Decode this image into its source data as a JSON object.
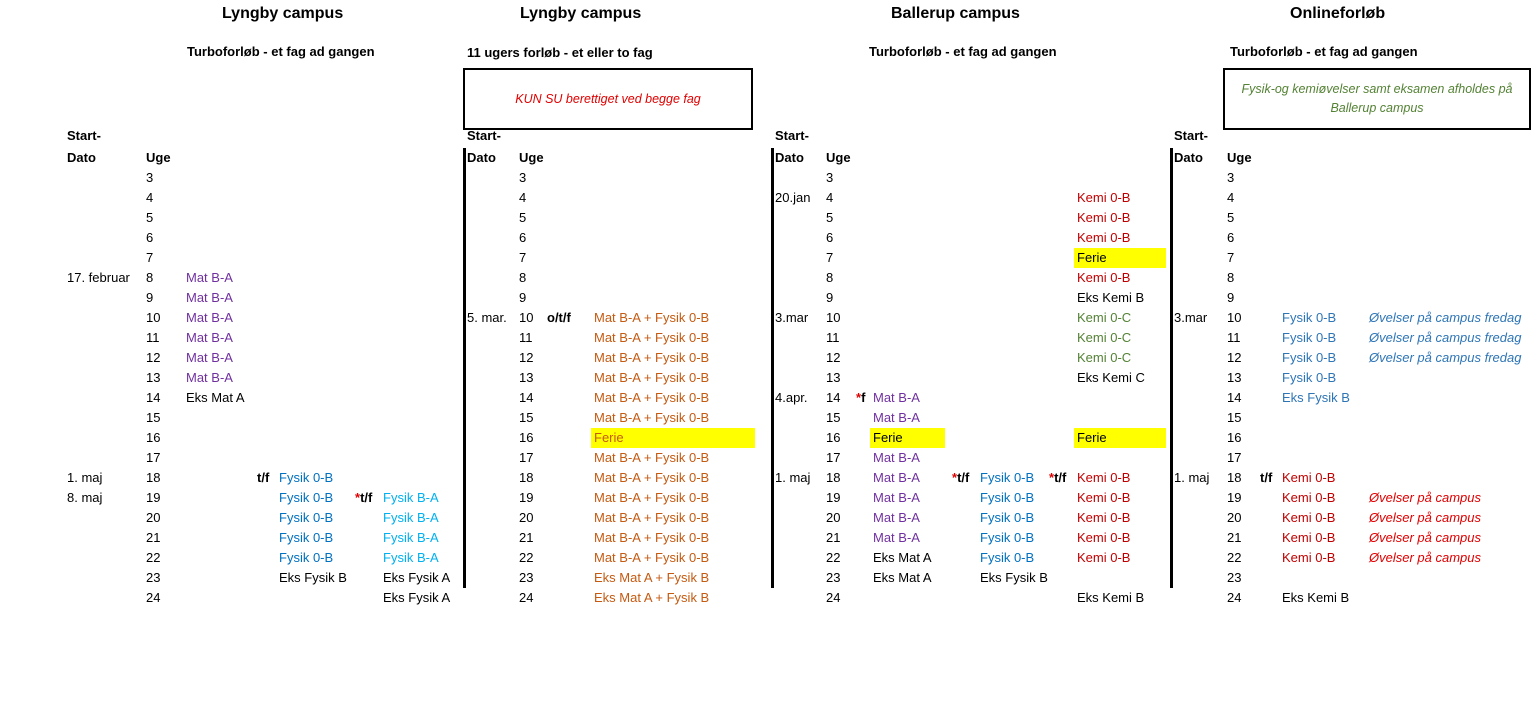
{
  "colors": {
    "mat": "#7030a0",
    "fysik_dark": "#0070c0",
    "fysik_light": "#00b0f0",
    "orange": "#c55a11",
    "kemi_red": "#c00000",
    "kemi_green": "#548235",
    "ovelser_red": "#e00000",
    "ovelser_blue": "#2e75b6",
    "highlight": "#ffff00"
  },
  "sections": [
    {
      "title": "Lyngby campus",
      "subtitle": "Turboforløb  - et fag ad gangen"
    },
    {
      "title": "Lyngby campus",
      "subtitle": "11 ugers forløb - et eller to fag",
      "note": "KUN SU berettiget ved begge fag"
    },
    {
      "title": "Ballerup campus",
      "subtitle": "Turboforløb  - et fag ad gangen"
    },
    {
      "title": "Onlineforløb",
      "subtitle": "Turboforløb  - et fag ad gangen",
      "note": "Fysik-og kemiøvelser samt eksamen afholdes på Ballerup campus"
    }
  ],
  "headers": {
    "start1": "Start-",
    "start2": "Dato",
    "uge": "Uge"
  },
  "weeks": [
    "3",
    "4",
    "5",
    "6",
    "7",
    "8",
    "9",
    "10",
    "11",
    "12",
    "13",
    "14",
    "15",
    "16",
    "17",
    "18",
    "19",
    "20",
    "21",
    "22",
    "23",
    "24"
  ],
  "lyngby_turbo": {
    "dates": [
      {
        "week": "8",
        "text": "17. februar"
      },
      {
        "week": "18",
        "text": "1. maj"
      },
      {
        "week": "19",
        "text": "8. maj"
      }
    ],
    "mat": [
      {
        "week": "8",
        "text": "Mat B-A"
      },
      {
        "week": "9",
        "text": "Mat B-A"
      },
      {
        "week": "10",
        "text": "Mat B-A"
      },
      {
        "week": "11",
        "text": "Mat B-A"
      },
      {
        "week": "12",
        "text": "Mat B-A"
      },
      {
        "week": "13",
        "text": "Mat B-A"
      },
      {
        "week": "14",
        "text": "Eks Mat A"
      }
    ],
    "tf_marks": [
      {
        "week": "18",
        "text": "t/f"
      }
    ],
    "fysik_b": [
      {
        "week": "18",
        "text": "Fysik 0-B"
      },
      {
        "week": "19",
        "text": "Fysik 0-B"
      },
      {
        "week": "20",
        "text": "Fysik 0-B"
      },
      {
        "week": "21",
        "text": "Fysik 0-B"
      },
      {
        "week": "22",
        "text": "Fysik 0-B"
      },
      {
        "week": "23",
        "text": "Eks Fysik B"
      }
    ],
    "star_marks": [
      {
        "week": "19",
        "star": "*",
        "text": "t/f"
      }
    ],
    "fysik_a": [
      {
        "week": "19",
        "text": "Fysik B-A"
      },
      {
        "week": "20",
        "text": "Fysik B-A"
      },
      {
        "week": "21",
        "text": "Fysik B-A"
      },
      {
        "week": "22",
        "text": "Fysik B-A"
      },
      {
        "week": "23",
        "text": "Eks Fysik A"
      },
      {
        "week": "24",
        "text": "Eks Fysik A"
      }
    ]
  },
  "lyngby_11": {
    "dates": [
      {
        "week": "10",
        "text": "5. mar."
      }
    ],
    "otf": [
      {
        "week": "10",
        "text": "o/t/f"
      }
    ],
    "combo": [
      {
        "week": "10",
        "text": "Mat B-A + Fysik 0-B"
      },
      {
        "week": "11",
        "text": "Mat B-A + Fysik 0-B"
      },
      {
        "week": "12",
        "text": "Mat B-A + Fysik 0-B"
      },
      {
        "week": "13",
        "text": "Mat B-A + Fysik 0-B"
      },
      {
        "week": "14",
        "text": "Mat B-A + Fysik 0-B"
      },
      {
        "week": "15",
        "text": "Mat B-A + Fysik 0-B"
      },
      {
        "week": "16",
        "text": "Ferie",
        "hl": true
      },
      {
        "week": "17",
        "text": "Mat B-A + Fysik 0-B"
      },
      {
        "week": "18",
        "text": "Mat B-A + Fysik 0-B"
      },
      {
        "week": "19",
        "text": "Mat B-A + Fysik 0-B"
      },
      {
        "week": "20",
        "text": "Mat B-A + Fysik 0-B"
      },
      {
        "week": "21",
        "text": "Mat B-A + Fysik 0-B"
      },
      {
        "week": "22",
        "text": "Mat B-A + Fysik 0-B"
      },
      {
        "week": "23",
        "text": "Eks Mat A + Fysik B"
      },
      {
        "week": "24",
        "text": "Eks Mat A + Fysik B"
      }
    ]
  },
  "ballerup": {
    "dates": [
      {
        "week": "4",
        "text": "20.jan"
      },
      {
        "week": "10",
        "text": "3.mar"
      },
      {
        "week": "14",
        "text": "4.apr."
      },
      {
        "week": "18",
        "text": "1. maj"
      }
    ],
    "mat_marks": [
      {
        "week": "14",
        "star": "*",
        "text": "f"
      }
    ],
    "mat": [
      {
        "week": "14",
        "text": "Mat B-A"
      },
      {
        "week": "15",
        "text": "Mat B-A"
      },
      {
        "week": "16",
        "text": "Ferie",
        "hl": true,
        "black": true
      },
      {
        "week": "17",
        "text": "Mat B-A"
      },
      {
        "week": "18",
        "text": "Mat B-A"
      },
      {
        "week": "19",
        "text": "Mat B-A"
      },
      {
        "week": "20",
        "text": "Mat B-A"
      },
      {
        "week": "21",
        "text": "Mat B-A"
      },
      {
        "week": "22",
        "text": "Eks Mat A",
        "black": true
      },
      {
        "week": "23",
        "text": "Eks Mat A",
        "black": true
      }
    ],
    "fys_marks": [
      {
        "week": "18",
        "star": "*",
        "text": "t/f"
      }
    ],
    "fysik": [
      {
        "week": "18",
        "text": "Fysik 0-B"
      },
      {
        "week": "19",
        "text": "Fysik 0-B"
      },
      {
        "week": "20",
        "text": "Fysik 0-B"
      },
      {
        "week": "21",
        "text": "Fysik 0-B"
      },
      {
        "week": "22",
        "text": "Fysik 0-B"
      },
      {
        "week": "23",
        "text": "Eks Fysik B",
        "black": true
      }
    ],
    "kemi_marks": [
      {
        "week": "18",
        "star": "*",
        "text": "t/f"
      }
    ],
    "kemi": [
      {
        "week": "4",
        "text": "Kemi 0-B",
        "c": "red"
      },
      {
        "week": "5",
        "text": "Kemi 0-B",
        "c": "red"
      },
      {
        "week": "6",
        "text": "Kemi 0-B",
        "c": "red"
      },
      {
        "week": "7",
        "text": "Ferie",
        "hl": true,
        "c": "black"
      },
      {
        "week": "8",
        "text": "Kemi 0-B",
        "c": "red"
      },
      {
        "week": "9",
        "text": "Eks Kemi B",
        "c": "black"
      },
      {
        "week": "10",
        "text": "Kemi 0-C",
        "c": "green"
      },
      {
        "week": "11",
        "text": "Kemi 0-C",
        "c": "green"
      },
      {
        "week": "12",
        "text": "Kemi 0-C",
        "c": "green"
      },
      {
        "week": "13",
        "text": "Eks Kemi C",
        "c": "black"
      },
      {
        "week": "16",
        "text": "Ferie",
        "hl": true,
        "c": "black"
      },
      {
        "week": "18",
        "text": "Kemi 0-B",
        "c": "red"
      },
      {
        "week": "19",
        "text": "Kemi 0-B",
        "c": "red"
      },
      {
        "week": "20",
        "text": "Kemi 0-B",
        "c": "red"
      },
      {
        "week": "21",
        "text": "Kemi 0-B",
        "c": "red"
      },
      {
        "week": "22",
        "text": "Kemi 0-B",
        "c": "red"
      },
      {
        "week": "24",
        "text": "Eks Kemi B",
        "c": "black"
      }
    ]
  },
  "online": {
    "dates": [
      {
        "week": "10",
        "text": "3.mar"
      },
      {
        "week": "18",
        "text": "1. maj"
      }
    ],
    "tf_marks": [
      {
        "week": "18",
        "text": "t/f"
      }
    ],
    "courses": [
      {
        "week": "10",
        "text": "Fysik 0-B",
        "c": "blue"
      },
      {
        "week": "11",
        "text": "Fysik 0-B",
        "c": "blue"
      },
      {
        "week": "12",
        "text": "Fysik 0-B",
        "c": "blue"
      },
      {
        "week": "13",
        "text": "Fysik 0-B",
        "c": "blue"
      },
      {
        "week": "14",
        "text": "Eks Fysik B",
        "c": "blue"
      },
      {
        "week": "18",
        "text": "Kemi 0-B",
        "c": "red"
      },
      {
        "week": "19",
        "text": "Kemi 0-B",
        "c": "red"
      },
      {
        "week": "20",
        "text": "Kemi 0-B",
        "c": "red"
      },
      {
        "week": "21",
        "text": "Kemi 0-B",
        "c": "red"
      },
      {
        "week": "22",
        "text": "Kemi 0-B",
        "c": "red"
      },
      {
        "week": "24",
        "text": "Eks Kemi B",
        "c": "black"
      }
    ],
    "notes": [
      {
        "week": "10",
        "text": "Øvelser på campus fredag",
        "c": "blue"
      },
      {
        "week": "11",
        "text": "Øvelser på campus fredag",
        "c": "blue"
      },
      {
        "week": "12",
        "text": "Øvelser på campus fredag",
        "c": "blue"
      },
      {
        "week": "19",
        "text": "Øvelser på campus",
        "c": "red"
      },
      {
        "week": "20",
        "text": "Øvelser på campus",
        "c": "red"
      },
      {
        "week": "21",
        "text": "Øvelser på campus",
        "c": "red"
      },
      {
        "week": "22",
        "text": "Øvelser på campus",
        "c": "red"
      }
    ]
  }
}
